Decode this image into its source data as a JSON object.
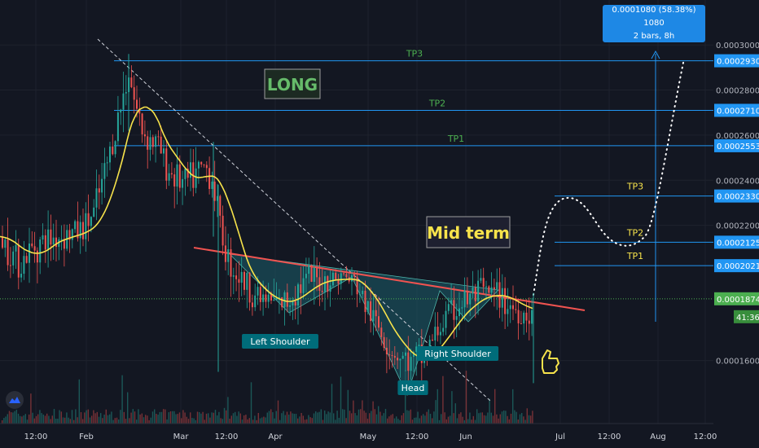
{
  "chart_data": {
    "type": "candlestick",
    "x_ticks": [
      "12:00",
      "Feb",
      "Mar",
      "12:00",
      "Apr",
      "May",
      "12:00",
      "Jun",
      "Jul",
      "12:00",
      "Aug",
      "12:00"
    ],
    "y_ticks": [
      0.00016,
      0.00022,
      0.00024,
      0.00026,
      0.00028,
      0.0003
    ],
    "y_tick_labels": [
      "0.0001600",
      "0.0002200",
      "0.0002400",
      "0.0002600",
      "0.0002800",
      "0.0003000"
    ],
    "y_range": [
      0.00014,
      0.000312
    ],
    "price_path": [
      [
        0,
        0.000215
      ],
      [
        10,
        0.00021
      ],
      [
        25,
        0.000203
      ],
      [
        40,
        0.00021
      ],
      [
        55,
        0.000213
      ],
      [
        70,
        0.000215
      ],
      [
        85,
        0.000216
      ],
      [
        100,
        0.000218
      ],
      [
        115,
        0.000225
      ],
      [
        130,
        0.000245
      ],
      [
        140,
        0.00026
      ],
      [
        150,
        0.000275
      ],
      [
        158,
        0.00029
      ],
      [
        165,
        0.000275
      ],
      [
        175,
        0.000262
      ],
      [
        185,
        0.000258
      ],
      [
        195,
        0.000255
      ],
      [
        205,
        0.000245
      ],
      [
        215,
        0.000242
      ],
      [
        225,
        0.000238
      ],
      [
        240,
        0.000242
      ],
      [
        252,
        0.000246
      ],
      [
        262,
        0.00024
      ],
      [
        270,
        0.00022
      ],
      [
        280,
        0.000205
      ],
      [
        292,
        0.000198
      ],
      [
        305,
        0.000192
      ],
      [
        318,
        0.000188
      ],
      [
        330,
        0.000186
      ],
      [
        342,
        0.000185
      ],
      [
        352,
        0.000186
      ],
      [
        365,
        0.000192
      ],
      [
        378,
        0.000196
      ],
      [
        392,
        0.000195
      ],
      [
        405,
        0.000196
      ],
      [
        418,
        0.000197
      ],
      [
        430,
        0.000196
      ],
      [
        440,
        0.000192
      ],
      [
        452,
        0.000182
      ],
      [
        465,
        0.000175
      ],
      [
        478,
        0.000166
      ],
      [
        490,
        0.000162
      ],
      [
        505,
        0.000159
      ],
      [
        518,
        0.000162
      ],
      [
        530,
        0.000168
      ],
      [
        540,
        0.000175
      ],
      [
        552,
        0.00018
      ],
      [
        565,
        0.000185
      ],
      [
        578,
        0.000188
      ],
      [
        592,
        0.00019
      ],
      [
        605,
        0.000189
      ],
      [
        618,
        0.000187
      ],
      [
        628,
        0.000184
      ],
      [
        640,
        0.000181
      ],
      [
        652,
        0.000182
      ]
    ],
    "annotations": {
      "long": "LONG",
      "mid_term": "Mid term",
      "left_shoulder": "Left Shoulder",
      "head": "Head",
      "right_shoulder": "Right Shoulder"
    },
    "levels_long": [
      {
        "label": "TP3",
        "price": 0.000293,
        "price_label": "0.0002930"
      },
      {
        "label": "TP2",
        "price": 0.000271,
        "price_label": "0.0002710"
      },
      {
        "label": "TP1",
        "price": 0.0002553,
        "price_label": "0.0002553"
      }
    ],
    "levels_mid": [
      {
        "label": "TP3",
        "price": 0.000233,
        "price_label": "0.0002330"
      },
      {
        "label": "TP2",
        "price": 0.0002125,
        "price_label": "0.0002125"
      },
      {
        "label": "TP1",
        "price": 0.0002021,
        "price_label": "0.0002021"
      }
    ],
    "current_price": {
      "price": 0.0001874,
      "label": "0.0001874",
      "countdown": "41:36"
    },
    "measure": {
      "line1": "0.0001080 (58.38%) 1080",
      "line2": "2 bars, 8h"
    }
  },
  "colors": {
    "background": "#131722",
    "grid": "#1e222d",
    "candle_up": "#26a69a",
    "candle_down": "#ef5350",
    "ma": "#f7e34b",
    "level": "#2196f3",
    "tp_long": "#4caf50",
    "tp_mid": "#f7e34b",
    "neckline": "#f05350",
    "pattern_fill": "#1b5e6b",
    "current": "#4caf50"
  }
}
